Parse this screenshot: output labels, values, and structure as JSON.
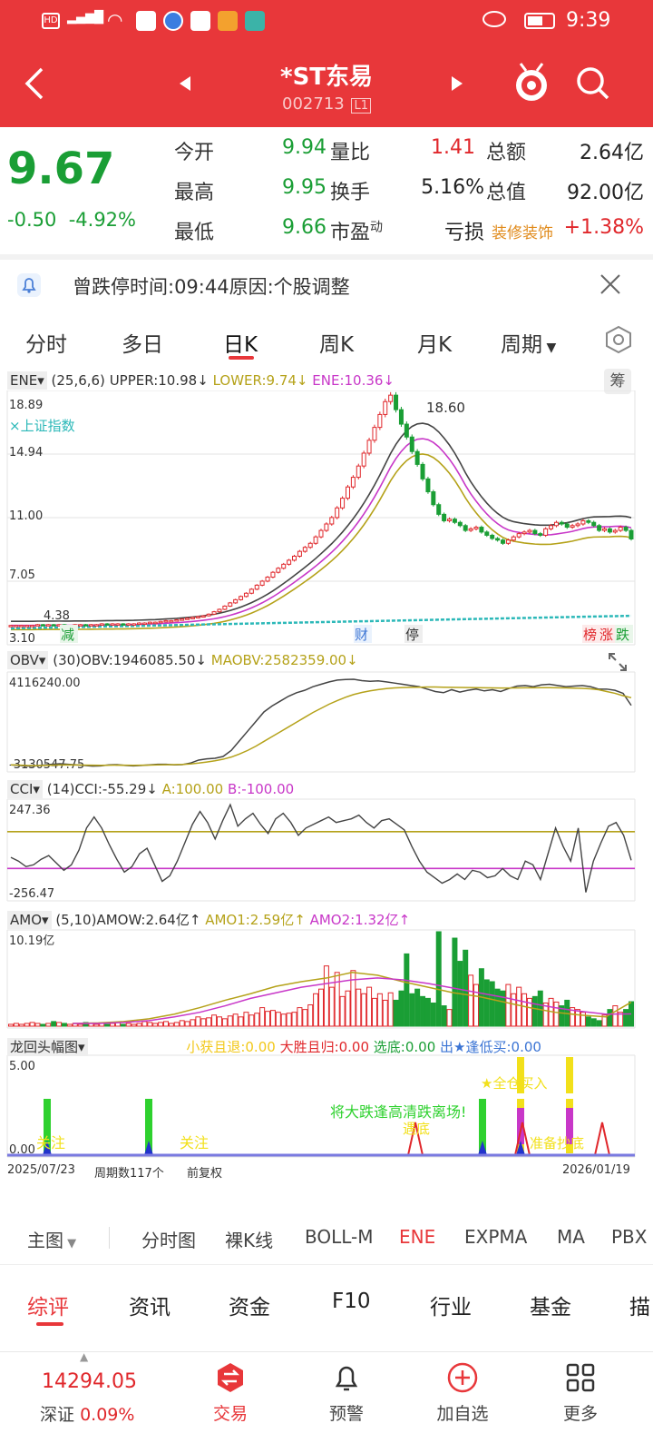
{
  "status_bar": {
    "signal": "HD 4G",
    "time": "9:39"
  },
  "nav": {
    "title": "*ST东易",
    "code": "002713",
    "code_badge": "L1"
  },
  "quote": {
    "price": "9.67",
    "change": "-0.50",
    "change_pct": "-4.92%",
    "rows": [
      {
        "l1": "今开",
        "v1": "9.94",
        "l2": "量比",
        "v2": "1.41",
        "l3": "总额",
        "v3": "2.64亿"
      },
      {
        "l1": "最高",
        "v1": "9.95",
        "l2": "换手",
        "v2": "5.16%",
        "l3": "总值",
        "v3": "92.00亿"
      },
      {
        "l1": "最低",
        "v1": "9.66",
        "l2": "市盈",
        "l2_sup": "动",
        "v2": "亏损",
        "l3": "装修装饰",
        "v3": "+1.38%"
      }
    ]
  },
  "notice": {
    "text": "曾跌停时间:09:44原因:个股调整"
  },
  "period_tabs": [
    "分时",
    "多日",
    "日K",
    "周K",
    "月K",
    "周期"
  ],
  "active_period": "日K",
  "ene_panel": {
    "name": "ENE",
    "params": "(25,6,6)",
    "upper": "UPPER:10.98↓",
    "lower": "LOWER:9.74↓",
    "ene": "ENE:10.36↓",
    "chip_btn": "筹",
    "y_labels": [
      "18.89",
      "14.94",
      "11.00",
      "7.05",
      "3.10"
    ],
    "overlay": "×上证指数",
    "max_label": "18.60",
    "min_label": "4.38",
    "markers": [
      "减",
      "财",
      "停",
      "榜",
      "涨",
      "跌"
    ]
  },
  "obv_panel": {
    "name": "OBV",
    "params": "(30)",
    "obv": "OBV:1946085.50↓",
    "maobv": "MAOBV:2582359.00↓",
    "y_top": "4116240.00",
    "y_bottom": "-3130547.75"
  },
  "cci_panel": {
    "name": "CCI",
    "params": "(14)",
    "cci": "CCI:-55.29↓",
    "a": "A:100.00",
    "b": "B:-100.00",
    "y_top": "247.36",
    "y_bottom": "-256.47"
  },
  "amo_panel": {
    "name": "AMO",
    "params": "(5,10)",
    "amow": "AMOW:2.64亿↑",
    "amo1": "AMO1:2.59亿↑",
    "amo2": "AMO2:1.32亿↑",
    "y_top": "10.19亿"
  },
  "dragon_panel": {
    "name": "龙回头幅图",
    "s1": "小获且退:0.00",
    "s2": "大胜且归:0.00",
    "s3": "选底:0.00",
    "s4": "出★逢低买:0.00",
    "y_top": "5.00",
    "y_bottom": "0.00",
    "signals": [
      "关注",
      "关注",
      "将大跌逢高清跌离场!",
      "★全仓买入",
      "遇底",
      "准备抄底"
    ]
  },
  "date_axis": {
    "start": "2025/07/23",
    "count": "周期数117个",
    "adj": "前复权",
    "end": "2026/01/19"
  },
  "indicator_bar": [
    "主图",
    "分时图",
    "裸K线",
    "BOLL-M",
    "ENE",
    "EXPMA",
    "MA",
    "PBX"
  ],
  "active_indicator": "ENE",
  "info_tabs": [
    "综评",
    "资讯",
    "资金",
    "F10",
    "行业",
    "基金",
    "描"
  ],
  "active_info_tab": "综评",
  "bottom_bar": {
    "index_value": "14294.05",
    "index_name": "深证",
    "index_change": "0.09%",
    "items": [
      "交易",
      "预警",
      "加自选",
      "更多"
    ]
  },
  "chart_data": [
    {
      "type": "candlestick",
      "title": "ENE",
      "ylim": [
        3.1,
        18.89
      ],
      "close": [
        4.3,
        4.3,
        4.3,
        4.3,
        4.3,
        4.35,
        4.3,
        4.35,
        4.3,
        4.35,
        4.3,
        4.3,
        4.35,
        4.35,
        4.3,
        4.35,
        4.35,
        4.4,
        4.35,
        4.4,
        4.4,
        4.35,
        4.4,
        4.4,
        4.45,
        4.45,
        4.5,
        4.5,
        4.55,
        4.6,
        4.6,
        4.65,
        4.7,
        4.75,
        4.8,
        4.85,
        4.9,
        5.0,
        5.15,
        5.3,
        5.5,
        5.7,
        5.9,
        6.1,
        6.3,
        6.55,
        6.8,
        7.05,
        7.3,
        7.6,
        7.85,
        8.1,
        8.35,
        8.6,
        8.9,
        9.15,
        9.4,
        9.8,
        10.2,
        10.6,
        11.0,
        11.6,
        12.2,
        12.9,
        13.5,
        14.2,
        15.0,
        15.8,
        16.6,
        17.4,
        18.2,
        18.6,
        17.7,
        16.8,
        16.0,
        15.1,
        14.3,
        13.4,
        12.6,
        11.8,
        11.2,
        10.8,
        10.9,
        10.7,
        10.5,
        10.2,
        10.3,
        10.4,
        10.1,
        9.9,
        9.7,
        9.6,
        9.4,
        9.6,
        9.8,
        10.0,
        10.1,
        10.2,
        10.0,
        9.9,
        10.3,
        10.5,
        10.7,
        10.6,
        10.4,
        10.5,
        10.6,
        10.8,
        10.7,
        10.5,
        10.2,
        10.3,
        10.1,
        10.2,
        10.4,
        10.2,
        9.67
      ],
      "upper": "10.98",
      "lower": "9.74",
      "ene": "10.36"
    },
    {
      "type": "line",
      "title": "OBV",
      "ylim": [
        -3130547.75,
        4116240.0
      ],
      "series": [
        {
          "name": "OBV",
          "values": [
            -3000000,
            -3050000,
            -3100000,
            -3080000,
            -3020000,
            -2950000,
            -2900000,
            -2950000,
            -3000000,
            -3050000,
            -3100000,
            -3080000,
            -3000000,
            -2980000,
            -3050000,
            -3080000,
            -3050000,
            -3000000,
            -2950000,
            -2950000,
            -3000000,
            -2980000,
            -2850000,
            -2600000,
            -2500000,
            -2450000,
            -2300000,
            -1800000,
            -1000000,
            -200000,
            600000,
            1400000,
            1900000,
            2300000,
            2700000,
            3000000,
            3200000,
            3500000,
            3700000,
            3900000,
            4050000,
            4100000,
            4116240,
            4000000,
            3950000,
            3980000,
            3900000,
            3800000,
            3700000,
            3600000,
            3500000,
            3300000,
            3100000,
            3000000,
            3250000,
            3050000,
            3200000,
            3300000,
            3150000,
            3250000,
            3100000,
            3350000,
            3550000,
            3600000,
            3500000,
            3650000,
            3700000,
            3600000,
            3500000,
            3550000,
            3600000,
            3500000,
            3300000,
            3300000,
            3200000,
            2950000,
            1946085.5
          ]
        },
        {
          "name": "MAOBV",
          "values": [
            -3000000,
            -3020000,
            -3050000,
            -3060000,
            -3050000,
            -3030000,
            -3010000,
            -3000000,
            -3010000,
            -3020000,
            -3030000,
            -3040000,
            -3030000,
            -3020000,
            -3030000,
            -3040000,
            -3030000,
            -3020000,
            -3000000,
            -2990000,
            -2980000,
            -2960000,
            -2920000,
            -2850000,
            -2760000,
            -2660000,
            -2530000,
            -2350000,
            -2100000,
            -1800000,
            -1450000,
            -1050000,
            -650000,
            -250000,
            150000,
            550000,
            950000,
            1350000,
            1700000,
            2050000,
            2350000,
            2620000,
            2850000,
            3020000,
            3150000,
            3260000,
            3340000,
            3400000,
            3430000,
            3450000,
            3460000,
            3470000,
            3470000,
            3460000,
            3450000,
            3440000,
            3430000,
            3420000,
            3410000,
            3400000,
            3390000,
            3390000,
            3400000,
            3410000,
            3410000,
            3420000,
            3420000,
            3410000,
            3400000,
            3380000,
            3360000,
            3320000,
            3250000,
            3100000,
            2950000,
            2750000,
            2582359.0
          ]
        }
      ]
    },
    {
      "type": "line",
      "title": "CCI",
      "ylim": [
        -256.47,
        247.36
      ],
      "series": [
        {
          "name": "CCI",
          "values": [
            -40,
            -60,
            -90,
            -80,
            -50,
            -30,
            -70,
            -110,
            -80,
            0,
            120,
            180,
            120,
            30,
            -50,
            -120,
            -90,
            -20,
            10,
            -80,
            -170,
            -140,
            -60,
            40,
            140,
            210,
            150,
            60,
            160,
            247,
            130,
            170,
            200,
            140,
            90,
            170,
            200,
            150,
            80,
            120,
            140,
            160,
            180,
            150,
            160,
            170,
            190,
            150,
            120,
            160,
            170,
            140,
            110,
            20,
            -60,
            -120,
            -150,
            -180,
            -160,
            -130,
            -160,
            -110,
            -120,
            -150,
            -140,
            -100,
            -140,
            -160,
            -60,
            -80,
            -160,
            -20,
            120,
            20,
            -60,
            120,
            -230,
            -60,
            40,
            130,
            150,
            80,
            -55.29
          ]
        },
        {
          "name": "A",
          "values": [
            100,
            100
          ]
        },
        {
          "name": "B",
          "values": [
            -100,
            -100
          ]
        }
      ]
    },
    {
      "type": "bar",
      "title": "AMO",
      "ylim": [
        0,
        10.19
      ],
      "series": [
        {
          "name": "AMO",
          "values": [
            0.2,
            0.3,
            0.2,
            0.3,
            0.4,
            0.3,
            0.2,
            0.3,
            0.5,
            0.4,
            0.3,
            0.2,
            0.3,
            0.2,
            0.4,
            0.3,
            0.2,
            0.3,
            0.2,
            0.3,
            0.4,
            0.2,
            0.3,
            0.2,
            0.3,
            0.5,
            0.4,
            0.3,
            0.4,
            0.5,
            0.3,
            0.4,
            0.6,
            0.5,
            0.7,
            1.0,
            0.8,
            0.9,
            1.2,
            1.0,
            0.8,
            1.1,
            1.3,
            1.0,
            1.5,
            1.2,
            1.4,
            2.0,
            1.6,
            1.7,
            1.5,
            1.3,
            1.4,
            1.5,
            2.0,
            1.8,
            2.3,
            3.5,
            4.0,
            6.5,
            4.2,
            5.8,
            3.2,
            3.8,
            6.0,
            4.0,
            3.5,
            4.2,
            3.0,
            3.5,
            2.8,
            3.6,
            2.8,
            3.8,
            7.8,
            3.5,
            4.0,
            3.2,
            3.0,
            2.5,
            10.19,
            2.2,
            1.8,
            9.5,
            7.0,
            8.2,
            5.5,
            4.5,
            6.2,
            5.0,
            4.8,
            4.0,
            3.8,
            4.5,
            3.5,
            4.2,
            3.5,
            3.0,
            3.2,
            3.8,
            2.5,
            3.0,
            2.6,
            2.2,
            2.8,
            2.0,
            1.8,
            1.5,
            1.0,
            0.8,
            0.6,
            1.2,
            1.8,
            2.2,
            1.5,
            1.8,
            2.64
          ]
        },
        {
          "name": "AMO1",
          "values": [
            0.3,
            0.35,
            0.5,
            0.8,
            1.3,
            2.0,
            2.8,
            3.5,
            4.3,
            4.8,
            5.2,
            5.8,
            5.5,
            4.8,
            4.2,
            3.6,
            3.2,
            2.6,
            2.0,
            1.5,
            1.2,
            1.0,
            2.59
          ]
        },
        {
          "name": "AMO2",
          "values": [
            0.3,
            0.3,
            0.4,
            0.6,
            1.0,
            1.5,
            2.2,
            3.0,
            3.6,
            4.2,
            4.6,
            5.0,
            5.2,
            5.0,
            4.6,
            4.1,
            3.6,
            3.1,
            2.5,
            2.0,
            1.6,
            1.3,
            1.32
          ]
        }
      ]
    }
  ],
  "colors": {
    "brand": "#e8373a",
    "up": "#e0272b",
    "down": "#1a9e35",
    "obv": "#444444",
    "maobv": "#b5a21a",
    "ene_upper": "#444444",
    "ene_mid": "#c837c8",
    "ene_lower": "#b5a21a"
  }
}
